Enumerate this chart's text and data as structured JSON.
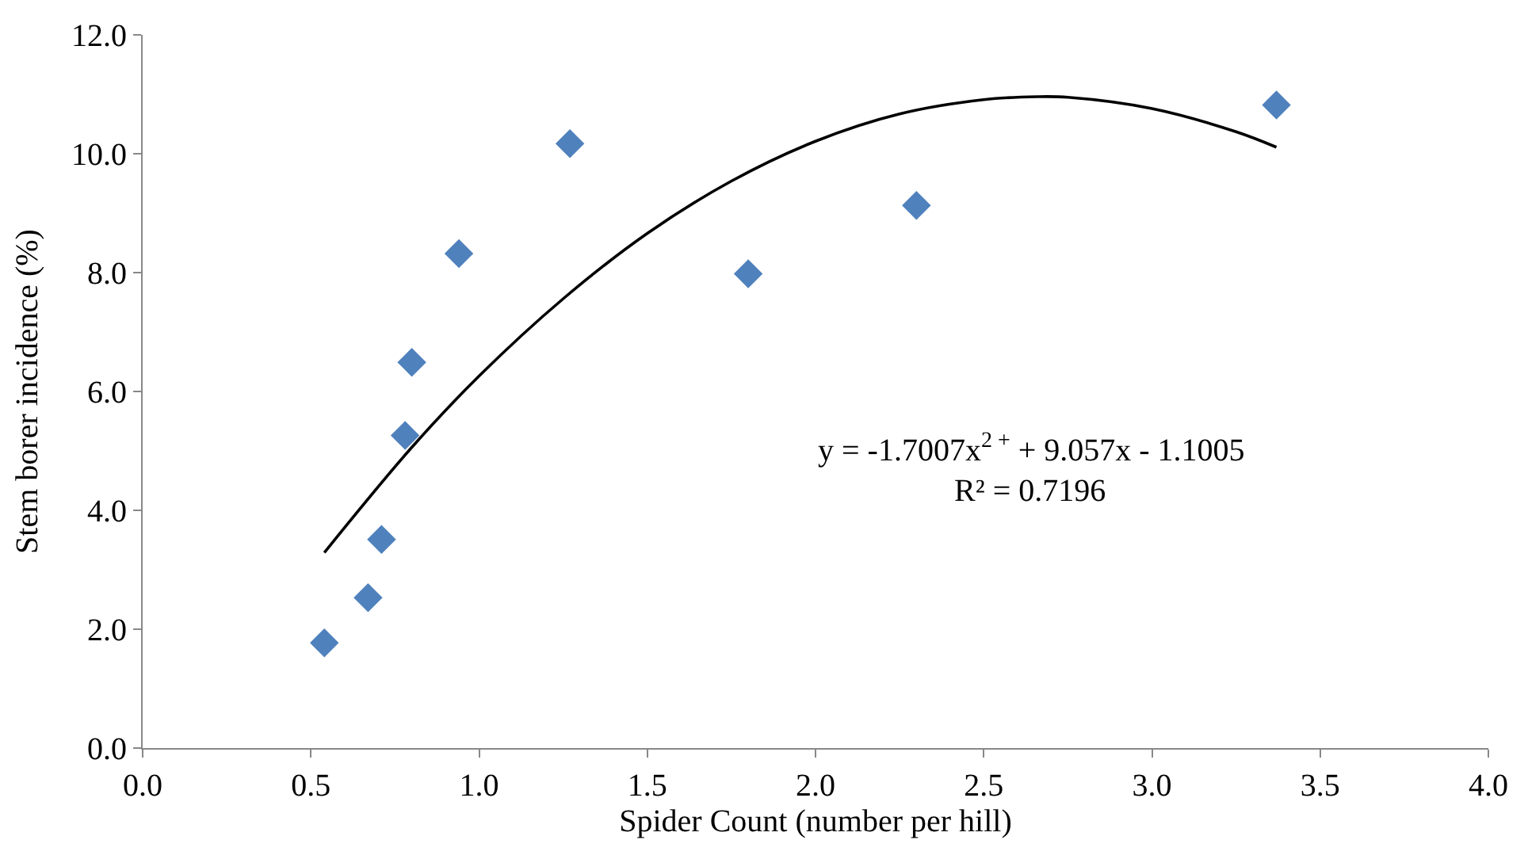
{
  "chart_data": {
    "type": "scatter",
    "xlabel": "Spider Count (number per hill)",
    "ylabel": "Stem borer incidence (%)",
    "xlim": [
      0,
      4
    ],
    "xticks": [
      {
        "value": 0,
        "label": "0.0"
      },
      {
        "value": 0.5,
        "label": "0.5"
      },
      {
        "value": 1,
        "label": "1.0"
      },
      {
        "value": 1.5,
        "label": "1.5"
      },
      {
        "value": 2,
        "label": "2.0"
      },
      {
        "value": 2.5,
        "label": "2.5"
      },
      {
        "value": 3,
        "label": "3.0"
      },
      {
        "value": 3.5,
        "label": "3.5"
      },
      {
        "value": 4,
        "label": "4.0"
      }
    ],
    "ylim": [
      0,
      12
    ],
    "yticks": [
      {
        "value": 0,
        "label": "0.0"
      },
      {
        "value": 2,
        "label": "2.0"
      },
      {
        "value": 4,
        "label": "4.0"
      },
      {
        "value": 6,
        "label": "6.0"
      },
      {
        "value": 8,
        "label": "8.0"
      },
      {
        "value": 10,
        "label": "10.0"
      },
      {
        "value": 12,
        "label": "12.0"
      }
    ],
    "series": [
      {
        "marker": "diamond",
        "color": "#4f81bd",
        "x": [
          0.54,
          0.67,
          0.71,
          0.78,
          0.8,
          0.94,
          1.27,
          1.8,
          2.3,
          3.37
        ],
        "values": [
          1.77,
          2.53,
          3.51,
          5.26,
          6.49,
          8.32,
          10.17,
          7.98,
          9.13,
          10.82
        ]
      },
      {
        "type": "line",
        "marker": "none",
        "line_style": "solid",
        "color": "#000000",
        "x": [
          0.54,
          0.8,
          1.0,
          1.25,
          1.5,
          1.75,
          2.0,
          2.25,
          2.5,
          2.66,
          2.75,
          3.0,
          3.25,
          3.37
        ],
        "values": [
          3.29,
          5.06,
          6.26,
          7.56,
          8.66,
          9.54,
          10.21,
          10.67,
          10.91,
          10.96,
          10.95,
          10.76,
          10.37,
          10.11
        ]
      }
    ],
    "annotations": [
      "y = -1.7007x$^{2 +}$ + 9.057x - 1.1005",
      "R² = 0.7196"
    ]
  }
}
